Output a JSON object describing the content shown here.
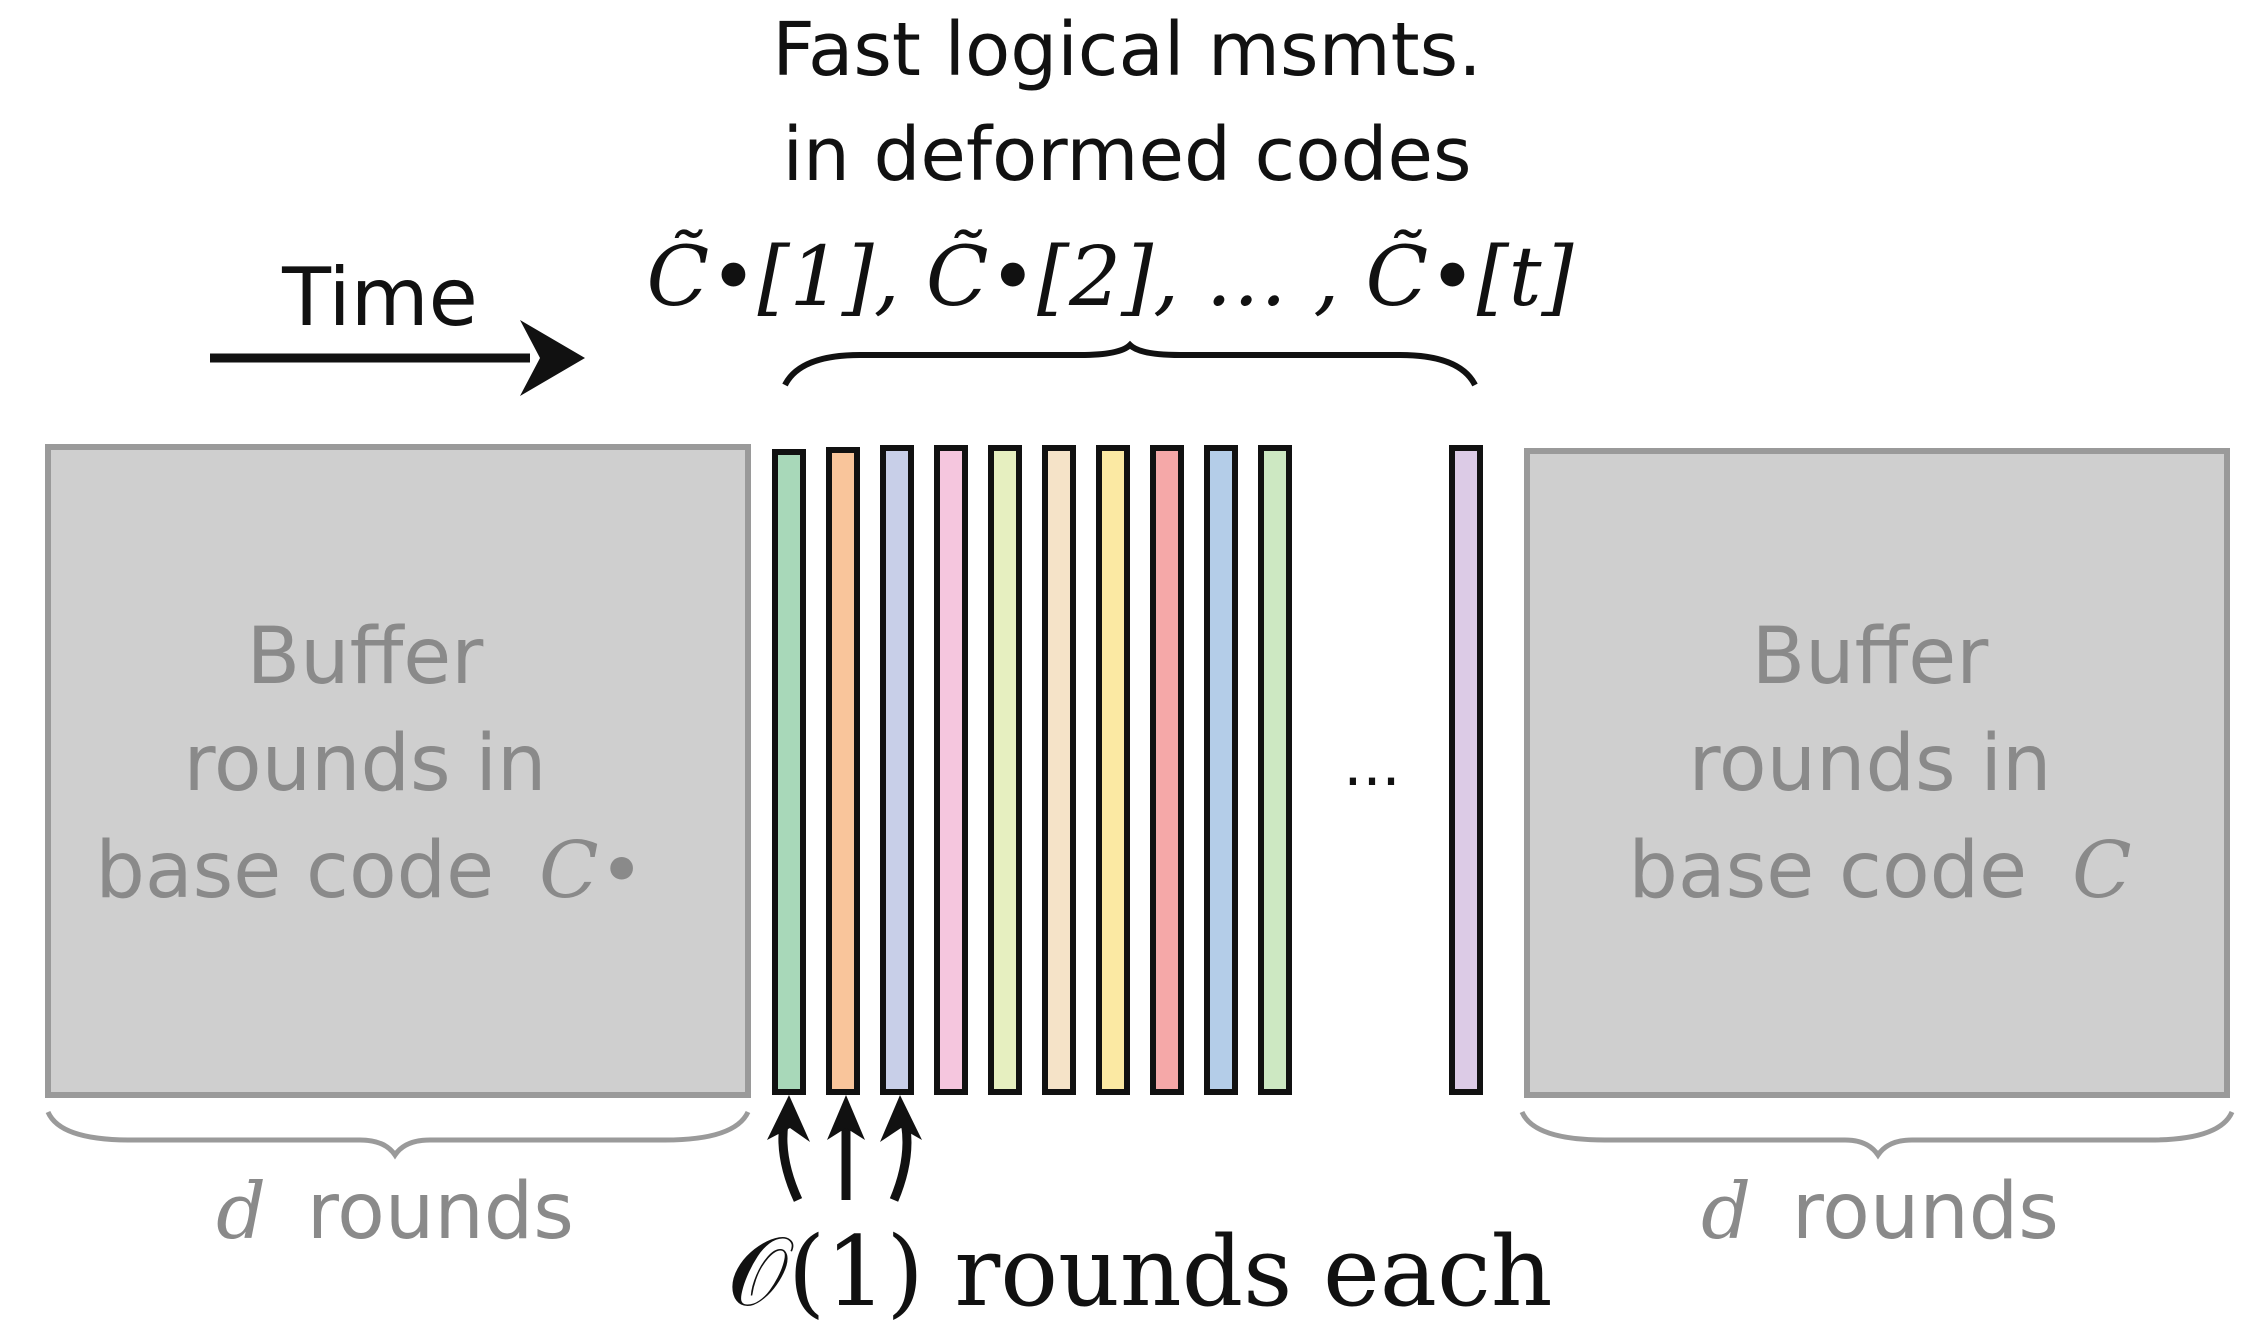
{
  "time_label": "Time",
  "top_label": {
    "line1": "Fast logical msmts.",
    "line2": "in deformed codes",
    "codes": [
      "C̃•[1],",
      "C̃•[2],",
      "… ,",
      "C̃•[t]"
    ]
  },
  "left_block": {
    "line1": "Buffer",
    "line2": "rounds in",
    "line3": "base code",
    "code_symbol": "C•"
  },
  "right_block": {
    "line1": "Buffer",
    "line2": "rounds in",
    "line3": "base code",
    "code_symbol": "C"
  },
  "left_caption": {
    "var": "d",
    "text": "rounds"
  },
  "right_caption": {
    "var": "d",
    "text": "rounds"
  },
  "ellipsis": "...",
  "bottom_caption": "𝒪(1) rounds each",
  "colors": {
    "buffer_fill": "#cfcfcf",
    "buffer_stroke": "#9a9a9a",
    "strips": [
      "#a8d8b9",
      "#f9c59b",
      "#c8cfe8",
      "#f5c6de",
      "#e6efc0",
      "#f5e3c8",
      "#fbe9a3",
      "#f5a8a8",
      "#b4cde8",
      "#cde8c2",
      "#dccbe6"
    ]
  }
}
